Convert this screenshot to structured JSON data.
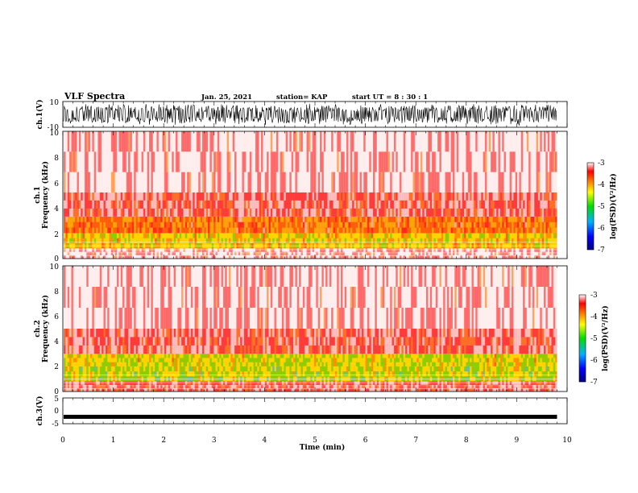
{
  "header": {
    "title": "VLF Spectra",
    "date": "Jan. 25, 2021",
    "station": "station= KAP",
    "start": "start  UT =   8  : 30 : 1"
  },
  "colors": {
    "spectrum_low": "#00008b",
    "spectrum_mid": "#00dd00",
    "spectrum_high": "#ffff00",
    "spectrum_top": "#ff0000",
    "background": "#ffffff",
    "trace": "#000000"
  },
  "chart_data": [
    {
      "type": "line",
      "panel": "ch1-waveform",
      "ylabel": "ch.1(V)",
      "ylim": [
        -10,
        10
      ],
      "yticks": [
        "10",
        "-10"
      ],
      "x_range_min": [
        0,
        10
      ],
      "data_end_min": 9.8,
      "envelope": "dense oscillating waveform, mostly between about -8 and +8 V"
    },
    {
      "type": "heatmap",
      "panel": "ch1-spectrogram",
      "ylabel": "ch.1\nFrequency (kHz)",
      "ylim": [
        0,
        10
      ],
      "yticks": [
        "0",
        "2",
        "4",
        "6",
        "8",
        "10"
      ],
      "colorbar": {
        "label": "log(PSD)(V²/Hz)",
        "ticks": [
          "-3",
          "-4",
          "-5",
          "-6",
          "-7"
        ],
        "range": [
          -7,
          -3
        ]
      },
      "bands": [
        {
          "from_khz": 0.0,
          "to_khz": 0.8,
          "level": -3.3
        },
        {
          "from_khz": 0.8,
          "to_khz": 2.0,
          "level": -4.3
        },
        {
          "from_khz": 2.0,
          "to_khz": 3.3,
          "level": -4.0
        },
        {
          "from_khz": 3.3,
          "to_khz": 5.2,
          "level": -3.4
        },
        {
          "from_khz": 5.2,
          "to_khz": 10.0,
          "level": -3.2
        }
      ]
    },
    {
      "type": "heatmap",
      "panel": "ch2-spectrogram",
      "ylabel": "ch.2\nFrequency (kHz)",
      "ylim": [
        0,
        10
      ],
      "yticks": [
        "0",
        "2",
        "4",
        "6",
        "8",
        "10"
      ],
      "colorbar": {
        "label": "log(PSD)(V²/Hz)",
        "ticks": [
          "-3",
          "-4",
          "-5",
          "-6",
          "-7"
        ],
        "range": [
          -7,
          -3
        ]
      },
      "bands": [
        {
          "from_khz": 0.0,
          "to_khz": 0.8,
          "level": -3.4
        },
        {
          "from_khz": 0.8,
          "to_khz": 2.0,
          "level": -4.6
        },
        {
          "from_khz": 2.0,
          "to_khz": 3.0,
          "level": -4.5
        },
        {
          "from_khz": 3.0,
          "to_khz": 5.0,
          "level": -3.4
        },
        {
          "from_khz": 5.0,
          "to_khz": 10.0,
          "level": -3.2
        }
      ]
    },
    {
      "type": "line",
      "panel": "ch3-waveform",
      "ylabel": "ch.3(V)",
      "ylim": [
        -5,
        5
      ],
      "yticks": [
        "5",
        "0",
        "-5"
      ],
      "constant_level_v": -2.3,
      "data_end_min": 9.8
    }
  ],
  "xaxis": {
    "label": "Time (min)",
    "ticks": [
      "0",
      "1",
      "2",
      "3",
      "4",
      "5",
      "6",
      "7",
      "8",
      "9",
      "10"
    ],
    "range": [
      0,
      10
    ]
  }
}
